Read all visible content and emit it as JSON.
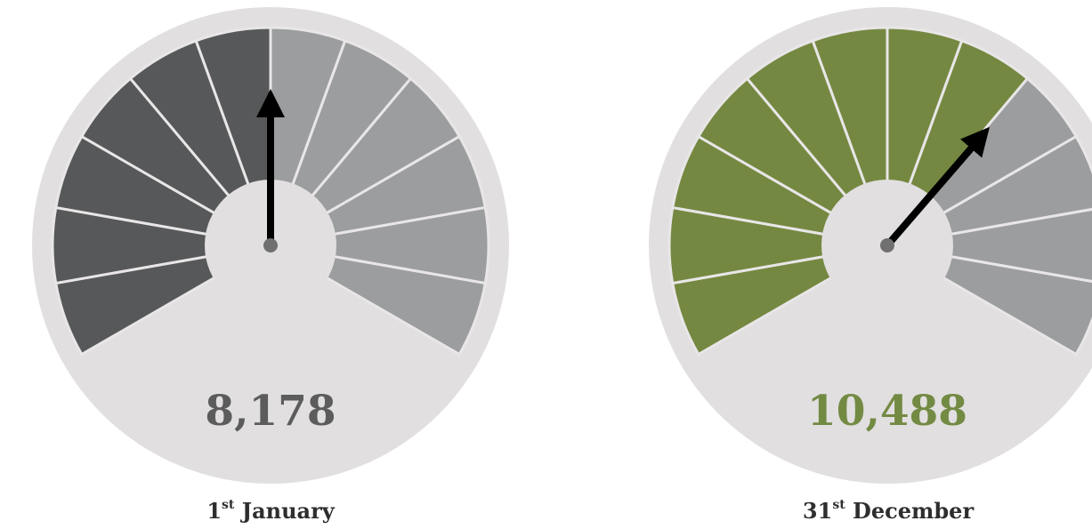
{
  "chart_data": [
    {
      "type": "gauge",
      "segments": 12,
      "segments_filled": 6,
      "value_label": "8,178",
      "date_number": "1",
      "date_suffix": "st",
      "date_month": "January",
      "needle_position": 0.5
    },
    {
      "type": "gauge",
      "segments": 12,
      "segments_filled": 8,
      "value_label": "10,488",
      "date_number": "31",
      "date_suffix": "st",
      "date_month": "December",
      "needle_position": 0.67
    }
  ],
  "colors": {
    "background": "#ffffff",
    "ring": "#e1dfe0",
    "separator": "#e8e6e7",
    "left_filled": "#575859",
    "right_filled": "#758841",
    "unfilled": "#9c9d9f",
    "left_value_text": "#5c5c5c",
    "right_value_text": "#738a43",
    "needle": "#000000",
    "pivot": "#707070"
  }
}
